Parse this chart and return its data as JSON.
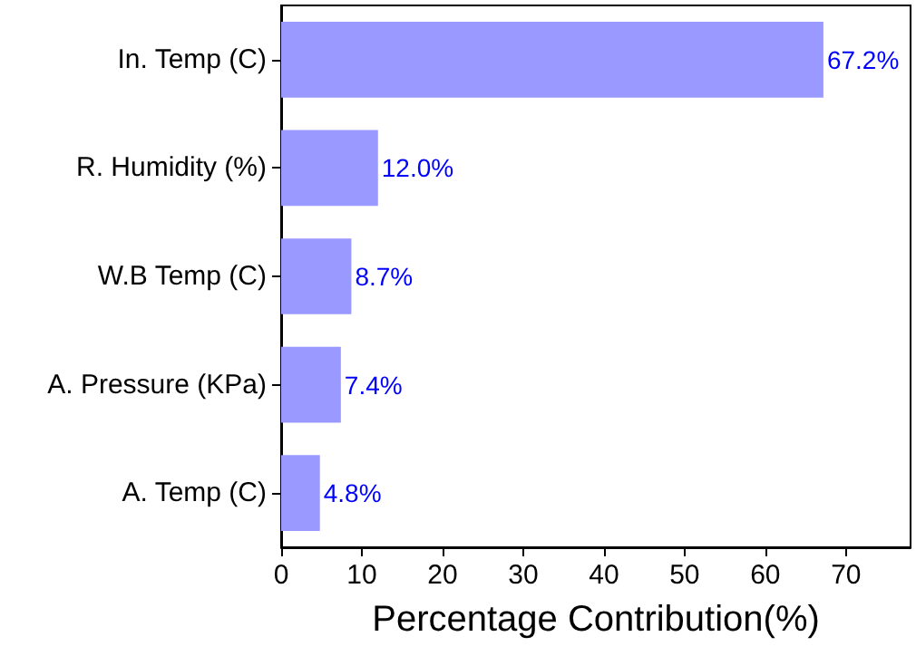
{
  "chart_data": {
    "type": "bar",
    "orientation": "horizontal",
    "xlabel": "Percentage Contribution(%)",
    "categories": [
      "In. Temp (C)",
      "R. Humidity (%)",
      "W.B Temp (C)",
      "A. Pressure (KPa)",
      "A. Temp (C)"
    ],
    "values": [
      67.2,
      12.0,
      8.7,
      7.4,
      4.8
    ],
    "value_labels": [
      "67.2%",
      "12.0%",
      "8.7%",
      "7.4%",
      "4.8%"
    ],
    "color": "#9999ff",
    "xlim": [
      0,
      78
    ],
    "xticks": [
      0,
      10,
      20,
      30,
      40,
      50,
      60,
      70
    ],
    "grid": false
  }
}
